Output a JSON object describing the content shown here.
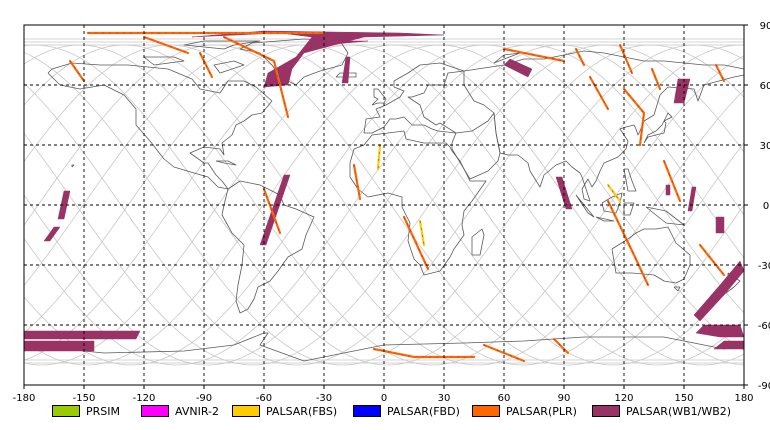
{
  "axis": {
    "x_ticks": [
      "-180",
      "-150",
      "-120",
      "-90",
      "-60",
      "-30",
      "0",
      "30",
      "60",
      "90",
      "120",
      "150",
      "180"
    ],
    "y_ticks": [
      "90",
      "60",
      "30",
      "0",
      "-30",
      "-60",
      "-90"
    ]
  },
  "legend": [
    {
      "label": "PRSIM",
      "color": "#99cc00"
    },
    {
      "label": "AVNIR-2",
      "color": "#ff00ff"
    },
    {
      "label": "PALSAR(FBS)",
      "color": "#ffcc00"
    },
    {
      "label": "PALSAR(FBD)",
      "color": "#0000ff"
    },
    {
      "label": "PALSAR(PLR)",
      "color": "#ff6600"
    },
    {
      "label": "PALSAR(WB1/WB2)",
      "color": "#993366"
    }
  ],
  "coverage": {
    "wide_swaths": [
      {
        "lonlat": [
          [
            -96,
            84
          ],
          [
            -52,
            86
          ],
          [
            -36,
            84
          ],
          [
            -44,
            74
          ],
          [
            -58,
            66
          ],
          [
            -60,
            59
          ],
          [
            -48,
            60
          ],
          [
            -46,
            68
          ],
          [
            -40,
            76
          ],
          [
            -10,
            84
          ],
          [
            30,
            85
          ],
          [
            8,
            86
          ],
          [
            -60,
            87
          ]
        ]
      },
      {
        "lonlat": [
          [
            -30,
            80
          ],
          [
            -8,
            82
          ],
          [
            -18,
            82
          ],
          [
            -34,
            78
          ]
        ]
      },
      {
        "lonlat": [
          [
            -19,
            74
          ],
          [
            -17,
            74
          ],
          [
            -18,
            61
          ],
          [
            -21,
            61
          ]
        ]
      },
      {
        "lonlat": [
          [
            -50,
            15
          ],
          [
            -47,
            15
          ],
          [
            -59,
            -20
          ],
          [
            -62,
            -20
          ]
        ]
      },
      {
        "lonlat": [
          [
            -160,
            7
          ],
          [
            -157,
            7
          ],
          [
            -160,
            -7
          ],
          [
            -163,
            -7
          ]
        ]
      },
      {
        "lonlat": [
          [
            -165,
            -11
          ],
          [
            -162,
            -11
          ],
          [
            -167,
            -18
          ],
          [
            -170,
            -18
          ]
        ]
      },
      {
        "lonlat": [
          [
            -180,
            -63
          ],
          [
            -122,
            -63
          ],
          [
            -124,
            -67
          ],
          [
            -180,
            -67
          ]
        ]
      },
      {
        "lonlat": [
          [
            -180,
            -68
          ],
          [
            -145,
            -68
          ],
          [
            -145,
            -73
          ],
          [
            -180,
            -73
          ]
        ]
      },
      {
        "lonlat": [
          [
            170,
            -68
          ],
          [
            180,
            -68
          ],
          [
            180,
            -72
          ],
          [
            165,
            -72
          ]
        ]
      },
      {
        "lonlat": [
          [
            160,
            -60
          ],
          [
            178,
            -60
          ],
          [
            180,
            -66
          ],
          [
            168,
            -66
          ],
          [
            156,
            -64
          ]
        ]
      },
      {
        "lonlat": [
          [
            155,
            -55
          ],
          [
            168,
            -40
          ],
          [
            178,
            -28
          ],
          [
            180,
            -33
          ],
          [
            170,
            -45
          ],
          [
            158,
            -58
          ]
        ]
      },
      {
        "lonlat": [
          [
            147,
            63
          ],
          [
            153,
            63
          ],
          [
            150,
            51
          ],
          [
            145,
            51
          ]
        ]
      },
      {
        "lonlat": [
          [
            63,
            73
          ],
          [
            74,
            68
          ],
          [
            72,
            64
          ],
          [
            60,
            70
          ]
        ]
      },
      {
        "lonlat": [
          [
            86,
            14
          ],
          [
            89,
            14
          ],
          [
            94,
            -2
          ],
          [
            91,
            -2
          ]
        ]
      },
      {
        "lonlat": [
          [
            141,
            10
          ],
          [
            143,
            10
          ],
          [
            143,
            5
          ],
          [
            141,
            5
          ]
        ]
      },
      {
        "lonlat": [
          [
            154,
            9
          ],
          [
            156,
            9
          ],
          [
            154,
            -3
          ],
          [
            152,
            -3
          ]
        ]
      },
      {
        "lonlat": [
          [
            166,
            -6
          ],
          [
            170,
            -6
          ],
          [
            170,
            -14
          ],
          [
            166,
            -14
          ]
        ]
      }
    ],
    "thin_tracks": [
      {
        "color": "#ff6600",
        "lonlat": [
          [
            -148,
            86
          ],
          [
            -30,
            86
          ]
        ]
      },
      {
        "color": "#ff6600",
        "lonlat": [
          [
            -157,
            72
          ],
          [
            -150,
            62
          ]
        ]
      },
      {
        "color": "#ff6600",
        "lonlat": [
          [
            -120,
            84
          ],
          [
            -98,
            76
          ]
        ]
      },
      {
        "color": "#ff6600",
        "lonlat": [
          [
            -92,
            76
          ],
          [
            -86,
            64
          ]
        ]
      },
      {
        "color": "#ff6600",
        "lonlat": [
          [
            -80,
            84
          ],
          [
            -55,
            72
          ],
          [
            -48,
            44
          ]
        ]
      },
      {
        "color": "#ff6600",
        "lonlat": [
          [
            -15,
            20
          ],
          [
            -12,
            3
          ]
        ]
      },
      {
        "color": "#ffcc00",
        "lonlat": [
          [
            -2,
            30
          ],
          [
            -3,
            18
          ]
        ]
      },
      {
        "color": "#ffcc00",
        "lonlat": [
          [
            18,
            -8
          ],
          [
            20,
            -20
          ]
        ]
      },
      {
        "color": "#ff6600",
        "lonlat": [
          [
            10,
            -6
          ],
          [
            22,
            -32
          ]
        ]
      },
      {
        "color": "#ff6600",
        "lonlat": [
          [
            -60,
            8
          ],
          [
            -52,
            -14
          ]
        ]
      },
      {
        "color": "#ff6600",
        "lonlat": [
          [
            -5,
            -72
          ],
          [
            15,
            -76
          ],
          [
            45,
            -76
          ]
        ]
      },
      {
        "color": "#ff6600",
        "lonlat": [
          [
            50,
            -70
          ],
          [
            70,
            -78
          ]
        ]
      },
      {
        "color": "#ff6600",
        "lonlat": [
          [
            85,
            -67
          ],
          [
            92,
            -74
          ]
        ]
      },
      {
        "color": "#ff6600",
        "lonlat": [
          [
            60,
            78
          ],
          [
            90,
            72
          ]
        ]
      },
      {
        "color": "#ff6600",
        "lonlat": [
          [
            96,
            78
          ],
          [
            100,
            70
          ]
        ]
      },
      {
        "color": "#ff6600",
        "lonlat": [
          [
            103,
            64
          ],
          [
            112,
            48
          ]
        ]
      },
      {
        "color": "#ff6600",
        "lonlat": [
          [
            118,
            80
          ],
          [
            124,
            66
          ]
        ]
      },
      {
        "color": "#ff6600",
        "lonlat": [
          [
            134,
            68
          ],
          [
            138,
            58
          ]
        ]
      },
      {
        "color": "#ff6600",
        "lonlat": [
          [
            166,
            70
          ],
          [
            170,
            62
          ]
        ]
      },
      {
        "color": "#ff6600",
        "lonlat": [
          [
            120,
            58
          ],
          [
            130,
            46
          ],
          [
            128,
            30
          ]
        ]
      },
      {
        "color": "#ffcc00",
        "lonlat": [
          [
            112,
            10
          ],
          [
            118,
            2
          ]
        ]
      },
      {
        "color": "#ff6600",
        "lonlat": [
          [
            112,
            2
          ],
          [
            125,
            -25
          ],
          [
            132,
            -40
          ]
        ]
      },
      {
        "color": "#ff6600",
        "lonlat": [
          [
            140,
            22
          ],
          [
            148,
            2
          ]
        ]
      },
      {
        "color": "#ff6600",
        "lonlat": [
          [
            158,
            -20
          ],
          [
            170,
            -35
          ]
        ]
      }
    ]
  }
}
